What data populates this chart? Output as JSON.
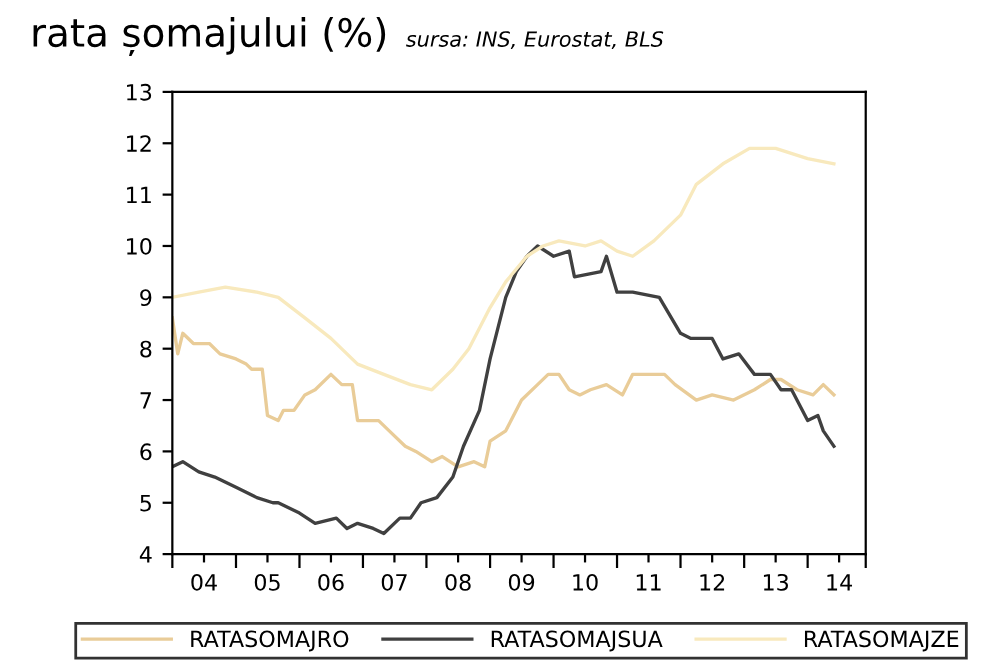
{
  "chart_data": {
    "type": "line",
    "title": "rata șomajului (%)",
    "subtitle": "sursa: INS, Eurostat, BLS",
    "series": [
      {
        "name": "RATASOMAJRO",
        "color": "#e9cc98",
        "x": [
          "2004-01",
          "2004-02",
          "2004-03",
          "2004-05",
          "2004-08",
          "2004-10",
          "2005-01",
          "2005-03",
          "2005-04",
          "2005-06",
          "2005-07",
          "2005-09",
          "2005-10",
          "2005-12",
          "2006-02",
          "2006-04",
          "2006-07",
          "2006-09",
          "2006-11",
          "2006-12",
          "2007-04",
          "2007-06",
          "2007-09",
          "2007-11",
          "2008-02",
          "2008-04",
          "2008-07",
          "2008-10",
          "2008-12",
          "2009-01",
          "2009-04",
          "2009-07",
          "2009-10",
          "2009-12",
          "2010-02",
          "2010-04",
          "2010-06",
          "2010-08",
          "2010-11",
          "2011-02",
          "2011-04",
          "2011-10",
          "2011-12",
          "2012-04",
          "2012-07",
          "2012-11",
          "2013-03",
          "2013-06",
          "2013-08",
          "2013-11",
          "2014-02",
          "2014-04",
          "2014-06"
        ],
        "values": [
          8.6,
          7.9,
          8.3,
          8.1,
          8.1,
          7.9,
          7.8,
          7.7,
          7.6,
          7.6,
          6.7,
          6.6,
          6.8,
          6.8,
          7.1,
          7.2,
          7.5,
          7.3,
          7.3,
          6.6,
          6.6,
          6.4,
          6.1,
          6.0,
          5.8,
          5.9,
          5.7,
          5.8,
          5.7,
          6.2,
          6.4,
          7.0,
          7.3,
          7.5,
          7.5,
          7.2,
          7.1,
          7.2,
          7.3,
          7.1,
          7.5,
          7.5,
          7.3,
          7.0,
          7.1,
          7.0,
          7.2,
          7.4,
          7.4,
          7.2,
          7.1,
          7.3,
          7.1
        ]
      },
      {
        "name": "RATASOMAJSUA",
        "color": "#404040",
        "x": [
          "2004-01",
          "2004-03",
          "2004-06",
          "2004-09",
          "2005-01",
          "2005-05",
          "2005-08",
          "2005-09",
          "2006-01",
          "2006-04",
          "2006-08",
          "2006-10",
          "2006-12",
          "2007-03",
          "2007-05",
          "2007-08",
          "2007-10",
          "2007-12",
          "2008-03",
          "2008-06",
          "2008-08",
          "2008-11",
          "2009-01",
          "2009-04",
          "2009-06",
          "2009-08",
          "2009-10",
          "2010-01",
          "2010-04",
          "2010-05",
          "2010-10",
          "2010-11",
          "2011-01",
          "2011-04",
          "2011-09",
          "2012-01",
          "2012-03",
          "2012-07",
          "2012-09",
          "2012-12",
          "2013-03",
          "2013-06",
          "2013-08",
          "2013-10",
          "2014-01",
          "2014-03",
          "2014-04",
          "2014-06"
        ],
        "values": [
          5.7,
          5.8,
          5.6,
          5.5,
          5.3,
          5.1,
          5.0,
          5.0,
          4.8,
          4.6,
          4.7,
          4.5,
          4.6,
          4.5,
          4.4,
          4.7,
          4.7,
          5.0,
          5.1,
          5.5,
          6.1,
          6.8,
          7.8,
          9.0,
          9.5,
          9.8,
          10.0,
          9.8,
          9.9,
          9.4,
          9.5,
          9.8,
          9.1,
          9.1,
          9.0,
          8.3,
          8.2,
          8.2,
          7.8,
          7.9,
          7.5,
          7.5,
          7.2,
          7.2,
          6.6,
          6.7,
          6.4,
          6.1
        ]
      },
      {
        "name": "RATASOMAJZE",
        "color": "#f8e9bd",
        "x": [
          "2004-01",
          "2004-06",
          "2004-11",
          "2005-05",
          "2005-09",
          "2006-02",
          "2006-07",
          "2006-12",
          "2007-05",
          "2007-10",
          "2008-02",
          "2008-06",
          "2008-09",
          "2009-01",
          "2009-04",
          "2009-08",
          "2009-11",
          "2010-02",
          "2010-07",
          "2010-10",
          "2011-01",
          "2011-04",
          "2011-08",
          "2012-01",
          "2012-04",
          "2012-09",
          "2013-02",
          "2013-07",
          "2014-01",
          "2014-06"
        ],
        "values": [
          9.0,
          9.1,
          9.2,
          9.1,
          9.0,
          8.6,
          8.2,
          7.7,
          7.5,
          7.3,
          7.2,
          7.6,
          8.0,
          8.8,
          9.3,
          9.8,
          10.0,
          10.1,
          10.0,
          10.1,
          9.9,
          9.8,
          10.1,
          10.6,
          11.2,
          11.6,
          11.9,
          11.9,
          11.7,
          11.6
        ]
      }
    ],
    "xlim": [
      "2004-01",
      "2014-12"
    ],
    "xticks": [
      {
        "value": "2004-01",
        "label": null
      },
      {
        "value": "2004-07",
        "label": "04"
      },
      {
        "value": "2005-01",
        "label": null
      },
      {
        "value": "2005-07",
        "label": "05"
      },
      {
        "value": "2006-01",
        "label": null
      },
      {
        "value": "2006-07",
        "label": "06"
      },
      {
        "value": "2007-01",
        "label": null
      },
      {
        "value": "2007-07",
        "label": "07"
      },
      {
        "value": "2008-01",
        "label": null
      },
      {
        "value": "2008-07",
        "label": "08"
      },
      {
        "value": "2009-01",
        "label": null
      },
      {
        "value": "2009-07",
        "label": "09"
      },
      {
        "value": "2010-01",
        "label": null
      },
      {
        "value": "2010-07",
        "label": "10"
      },
      {
        "value": "2011-01",
        "label": null
      },
      {
        "value": "2011-07",
        "label": "11"
      },
      {
        "value": "2012-01",
        "label": null
      },
      {
        "value": "2012-07",
        "label": "12"
      },
      {
        "value": "2013-01",
        "label": null
      },
      {
        "value": "2013-07",
        "label": "13"
      },
      {
        "value": "2014-01",
        "label": null
      },
      {
        "value": "2014-07",
        "label": "14"
      },
      {
        "value": "2014-12",
        "label": null
      }
    ],
    "ylim": [
      4,
      13
    ],
    "yticks": [
      4,
      5,
      6,
      7,
      8,
      9,
      10,
      11,
      12,
      13
    ],
    "grid": false,
    "legend": "bottom",
    "marker": "none",
    "line_style": "solid"
  }
}
